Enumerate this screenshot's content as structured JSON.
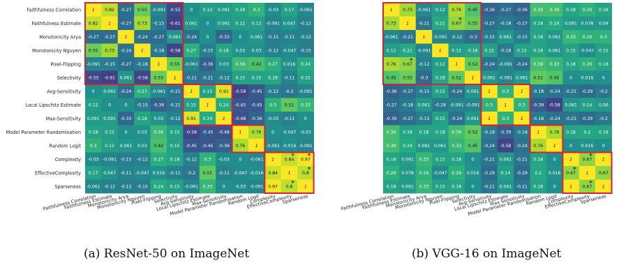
{
  "chart_data": [
    {
      "type": "heatmap",
      "title": "",
      "caption": "(a) ResNet-50 on ImageNet",
      "row_labels": [
        "Faithfulness Correlation",
        "Faithfulness Estimate",
        "Monotonicity Arya",
        "Monotonicity Nguyen",
        "Pixel-Flipping",
        "Selectivity",
        "Avg-Sensitivity",
        "Local Lipschitz Estimate",
        "Max-Sensitivity",
        "Model Parameter Randomisation",
        "Random Logit",
        "Complexity",
        "EffectiveComplexity",
        "Sparseness"
      ],
      "col_labels": [
        "Faithfulness Correlation",
        "Faithfulness Estimate",
        "Monotonicity Arya",
        "Monotonicity Nguyen",
        "Pixel-Flipping",
        "Selectivity",
        "Avg-Sensitivity",
        "Local Lipschitz Estimate",
        "Max-Sensitivity",
        "Model Parameter Randomisation",
        "Random Logit",
        "Complexity",
        "EffectiveComplexity",
        "Sparseness"
      ],
      "cells": [
        [
          "1",
          "0.82",
          "-0.27",
          "0.55",
          "-0.091",
          "-0.55",
          "0",
          "0.12",
          "0.091",
          "0.18",
          "0.3",
          "-0.03",
          "0.17",
          "-0.061"
        ],
        [
          "0.82",
          "1",
          "-0.27",
          "0.73",
          "-0.15",
          "-0.61",
          "0.061",
          "0",
          "0.091",
          "0.12",
          "0.12",
          "-0.091",
          "0.047",
          "-0.12"
        ],
        [
          "-0.27",
          "-0.27",
          "1",
          "-0.24",
          "-0.27",
          "0.061",
          "-0.24",
          "0",
          "-0.33",
          "0",
          "0.061",
          "-0.15",
          "-0.11",
          "-0.12"
        ],
        [
          "0.55",
          "0.73",
          "-0.24",
          "1",
          "-0.18",
          "-0.58",
          "0.27",
          "-0.15",
          "0.18",
          "0.03",
          "0.03",
          "-0.12",
          "-0.047",
          "-0.15"
        ],
        [
          "-0.091",
          "-0.15",
          "-0.27",
          "-0.18",
          "1",
          "0.55",
          "-0.061",
          "-0.36",
          "0.03",
          "0.36",
          "0.42",
          "0.27",
          "0.016",
          "0.24"
        ],
        [
          "-0.55",
          "-0.61",
          "0.061",
          "-0.58",
          "0.55",
          "1",
          "-0.21",
          "-0.21",
          "-0.12",
          "0.15",
          "0.15",
          "0.18",
          "-0.11",
          "0.15"
        ],
        [
          "0",
          "0.061",
          "-0.24",
          "0.27",
          "-0.061",
          "-0.21",
          "1",
          "0.15",
          "0.91",
          "-0.58",
          "-0.45",
          "-0.12",
          "-0.2",
          "-0.091"
        ],
        [
          "0.12",
          "0",
          "0",
          "-0.15",
          "-0.36",
          "-0.21",
          "0.15",
          "1",
          "0.24",
          "-0.45",
          "-0.45",
          "0.3",
          "0.51",
          "0.33"
        ],
        [
          "0.091",
          "0.091",
          "-0.33",
          "0.18",
          "0.03",
          "-0.12",
          "0.91",
          "0.24",
          "1",
          "-0.48",
          "-0.36",
          "-0.03",
          "-0.11",
          "0"
        ],
        [
          "0.18",
          "0.12",
          "0",
          "0.03",
          "0.36",
          "0.15",
          "-0.58",
          "-0.45",
          "-0.48",
          "1",
          "0.76",
          "0",
          "-0.047",
          "-0.03"
        ],
        [
          "0.3",
          "0.12",
          "0.061",
          "0.03",
          "0.42",
          "0.15",
          "-0.45",
          "-0.45",
          "-0.36",
          "0.76",
          "1",
          "-0.061",
          "-0.016",
          "-0.091"
        ],
        [
          "-0.03",
          "-0.091",
          "-0.15",
          "-0.12",
          "0.27",
          "0.18",
          "-0.12",
          "0.3",
          "-0.03",
          "0",
          "-0.061",
          "1",
          "0.84",
          "0.97"
        ],
        [
          "0.17",
          "0.047",
          "-0.11",
          "-0.047",
          "0.016",
          "-0.11",
          "-0.2",
          "0.51",
          "-0.11",
          "-0.047",
          "-0.016",
          "0.84",
          "1",
          "0.8"
        ],
        [
          "-0.061",
          "-0.12",
          "-0.12",
          "-0.15",
          "0.24",
          "0.15",
          "-0.091",
          "0.33",
          "0",
          "-0.03",
          "-0.091",
          "0.97",
          "0.8",
          "1"
        ]
      ],
      "star_cells": [
        [
          11,
          12
        ],
        [
          11,
          13
        ],
        [
          12,
          13
        ],
        [
          13,
          12
        ]
      ],
      "boxes": [
        [
          0,
          5
        ],
        [
          6,
          8
        ],
        [
          9,
          10
        ],
        [
          11,
          13
        ]
      ],
      "highlight_color": "#d6203a",
      "colormap": "viridis",
      "value_range": [
        -1,
        1
      ]
    },
    {
      "type": "heatmap",
      "title": "",
      "caption": "(b) VGG-16 on ImageNet",
      "row_labels": [
        "Faithfulness Correlation",
        "Faithfulness Estimate",
        "Monotonicity Arya",
        "Monotonicity Nguyen",
        "Pixel-Flipping",
        "Selectivity",
        "Avg-Sensitivity",
        "Local Lipschitz Estimate",
        "Max-Sensitivity",
        "Model Parameter Randomisation",
        "Random Logit",
        "Complexity",
        "EffectiveComplexity",
        "Sparseness"
      ],
      "col_labels": [
        "Faithfulness Correlation",
        "Faithfulness Estimate",
        "Monotonicity Arya",
        "Monotonicity Nguyen",
        "Pixel-Flipping",
        "Selectivity",
        "Avg-Sensitivity",
        "Local Lipschitz Estimate",
        "Max-Sensitivity",
        "Model Parameter Randomisation",
        "Random Logit",
        "Complexity",
        "EffectiveComplexity",
        "Sparseness"
      ],
      "cells": [
        [
          "1",
          "0.73",
          "-0.061",
          "0.12",
          "0.76",
          "0.45",
          "-0.36",
          "-0.27",
          "-0.36",
          "0.39",
          "0.39",
          "0.18",
          "0.29",
          "0.18"
        ],
        [
          "0.73",
          "1",
          "-0.21",
          "0.21",
          "0.67",
          "0.55",
          "-0.27",
          "-0.18",
          "-0.27",
          "0.18",
          "0.24",
          "0.091",
          "0.078",
          "0.09"
        ],
        [
          "-0.061",
          "-0.21",
          "1",
          "-0.091",
          "-0.12",
          "-0.3",
          "-0.15",
          "0.061",
          "-0.15",
          "0.18",
          "0.061",
          "0.33",
          "0.29",
          "0.3"
        ],
        [
          "0.12",
          "0.21",
          "-0.091",
          "1",
          "0.12",
          "0.18",
          "0.15",
          "-0.18",
          "0.15",
          "0.18",
          "0.061",
          "0.15",
          "-0.047",
          "0.15"
        ],
        [
          "0.76",
          "0.67",
          "-0.12",
          "0.12",
          "1",
          "0.52",
          "-0.24",
          "-0.091",
          "-0.24",
          "0.39",
          "0.33",
          "0.18",
          "0.29",
          "0.18"
        ],
        [
          "0.45",
          "0.55",
          "-0.3",
          "0.18",
          "0.52",
          "1",
          "0.061",
          "-0.091",
          "0.061",
          "0.52",
          "0.45",
          "0",
          "0.016",
          "0"
        ],
        [
          "-0.36",
          "-0.27",
          "-0.15",
          "0.15",
          "-0.24",
          "0.061",
          "1",
          "0.3",
          "1",
          "-0.18",
          "-0.24",
          "-0.21",
          "-0.29",
          "-0.2"
        ],
        [
          "-0.27",
          "-0.18",
          "0.061",
          "-0.18",
          "-0.091",
          "-0.091",
          "0.3",
          "1",
          "0.3",
          "-0.39",
          "-0.58",
          "0.061",
          "0.14",
          "0.06"
        ],
        [
          "-0.36",
          "-0.27",
          "-0.15",
          "0.15",
          "-0.24",
          "0.061",
          "1",
          "0.3",
          "1",
          "-0.18",
          "-0.24",
          "-0.21",
          "-0.29",
          "-0.2"
        ],
        [
          "0.39",
          "0.18",
          "0.18",
          "0.18",
          "0.39",
          "0.52",
          "-0.18",
          "-0.39",
          "-0.18",
          "1",
          "0.76",
          "0.18",
          "0.2",
          "0.18"
        ],
        [
          "0.39",
          "0.24",
          "0.061",
          "0.061",
          "0.33",
          "0.45",
          "-0.24",
          "-0.58",
          "-0.24",
          "0.76",
          "1",
          "0",
          "0.016",
          "0"
        ],
        [
          "0.18",
          "0.091",
          "0.33",
          "0.15",
          "0.18",
          "0",
          "-0.21",
          "0.061",
          "-0.21",
          "0.18",
          "0",
          "1",
          "0.67",
          "1"
        ],
        [
          "0.29",
          "0.078",
          "0.29",
          "-0.047",
          "0.29",
          "0.016",
          "-0.29",
          "0.14",
          "-0.29",
          "0.2",
          "0.016",
          "0.67",
          "1",
          "0.67"
        ],
        [
          "0.18",
          "0.091",
          "0.33",
          "0.15",
          "0.18",
          "0",
          "-0.21",
          "0.061",
          "-0.21",
          "0.18",
          "0",
          "1",
          "0.67",
          "1"
        ]
      ],
      "star_cells": [
        [
          1,
          4
        ],
        [
          4,
          1
        ],
        [
          11,
          12
        ],
        [
          12,
          11
        ],
        [
          13,
          12
        ]
      ],
      "boxes": [
        [
          0,
          5
        ],
        [
          6,
          8
        ],
        [
          9,
          10
        ],
        [
          11,
          13
        ]
      ],
      "highlight_color": "#d6203a",
      "colormap": "viridis",
      "value_range": [
        -1,
        1
      ]
    }
  ]
}
